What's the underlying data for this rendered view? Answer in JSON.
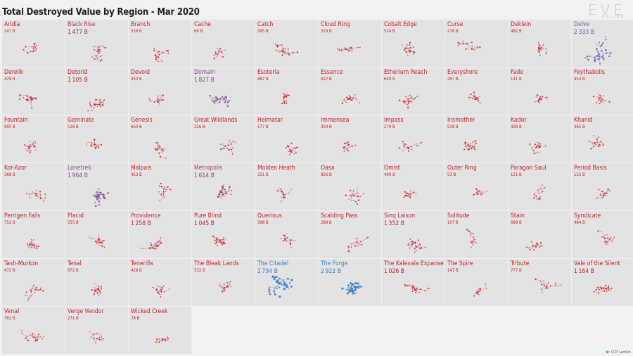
{
  "title": "Total Destroyed Value by Region - Mar 2020",
  "logo": {
    "main": "EVE",
    "sub": "ONLINE"
  },
  "credit": {
    "icon": "twitter-bird-icon",
    "text": "CCP_Larrikin"
  },
  "colors": {
    "low": "#cc2128",
    "mid": "#8a4e96",
    "high": "#3d7fc6",
    "cell_bg": "#e3e3e3",
    "page_bg": "#f1f1f1"
  },
  "chart_data": {
    "type": "small-multiples",
    "title": "Total Destroyed Value by Region - Mar 2020",
    "unit": "B",
    "regions": [
      {
        "name": "Aridia",
        "value": 247
      },
      {
        "name": "Black Rise",
        "value": 1477
      },
      {
        "name": "Branch",
        "value": 539
      },
      {
        "name": "Cache",
        "value": 66
      },
      {
        "name": "Catch",
        "value": 995
      },
      {
        "name": "Cloud Ring",
        "value": 319
      },
      {
        "name": "Cobalt Edge",
        "value": 524
      },
      {
        "name": "Curse",
        "value": 276
      },
      {
        "name": "Deklein",
        "value": 482
      },
      {
        "name": "Delve",
        "value": 2333
      },
      {
        "name": "Derelik",
        "value": 429
      },
      {
        "name": "Detorid",
        "value": 1105
      },
      {
        "name": "Devoid",
        "value": 450
      },
      {
        "name": "Domain",
        "value": 1827
      },
      {
        "name": "Esoteria",
        "value": 687
      },
      {
        "name": "Essence",
        "value": 622
      },
      {
        "name": "Etherium Reach",
        "value": 649
      },
      {
        "name": "Everyshore",
        "value": 267
      },
      {
        "name": "Fade",
        "value": 141
      },
      {
        "name": "Feythabolis",
        "value": 454
      },
      {
        "name": "Fountain",
        "value": 905
      },
      {
        "name": "Geminate",
        "value": 518
      },
      {
        "name": "Genesis",
        "value": 660
      },
      {
        "name": "Great Wildlands",
        "value": 226
      },
      {
        "name": "Heimatar",
        "value": 577
      },
      {
        "name": "Immensea",
        "value": 359
      },
      {
        "name": "Impass",
        "value": 279
      },
      {
        "name": "Insmother",
        "value": 918
      },
      {
        "name": "Kador",
        "value": 428
      },
      {
        "name": "Khanid",
        "value": 465
      },
      {
        "name": "Kor-Azor",
        "value": 368
      },
      {
        "name": "Lonetrek",
        "value": 1964
      },
      {
        "name": "Malpais",
        "value": 453
      },
      {
        "name": "Metropolis",
        "value": 1614
      },
      {
        "name": "Molden Heath",
        "value": 331
      },
      {
        "name": "Oasa",
        "value": 926
      },
      {
        "name": "Omist",
        "value": 499
      },
      {
        "name": "Outer Ring",
        "value": 53
      },
      {
        "name": "Paragon Soul",
        "value": 121
      },
      {
        "name": "Period Basis",
        "value": 135
      },
      {
        "name": "Perrigen Falls",
        "value": 752
      },
      {
        "name": "Placid",
        "value": 555
      },
      {
        "name": "Providence",
        "value": 1258
      },
      {
        "name": "Pure Blind",
        "value": 1045
      },
      {
        "name": "Querious",
        "value": 398
      },
      {
        "name": "Scalding Pass",
        "value": 288
      },
      {
        "name": "Sinq Laison",
        "value": 1352
      },
      {
        "name": "Solitude",
        "value": 107
      },
      {
        "name": "Stain",
        "value": 698
      },
      {
        "name": "Syndicate",
        "value": 484
      },
      {
        "name": "Tash-Murkon",
        "value": 472
      },
      {
        "name": "Tenal",
        "value": 872
      },
      {
        "name": "Tenerifis",
        "value": 429
      },
      {
        "name": "The Bleak Lands",
        "value": 532
      },
      {
        "name": "The Citadel",
        "value": 2794
      },
      {
        "name": "The Forge",
        "value": 2922
      },
      {
        "name": "The Kalevala Expanse",
        "value": 1026
      },
      {
        "name": "The Spire",
        "value": 147
      },
      {
        "name": "Tribute",
        "value": 777
      },
      {
        "name": "Vale of the Silent",
        "value": 1164
      },
      {
        "name": "Venal",
        "value": 762
      },
      {
        "name": "Verge Vendor",
        "value": 271
      },
      {
        "name": "Wicked Creek",
        "value": 78
      }
    ]
  }
}
